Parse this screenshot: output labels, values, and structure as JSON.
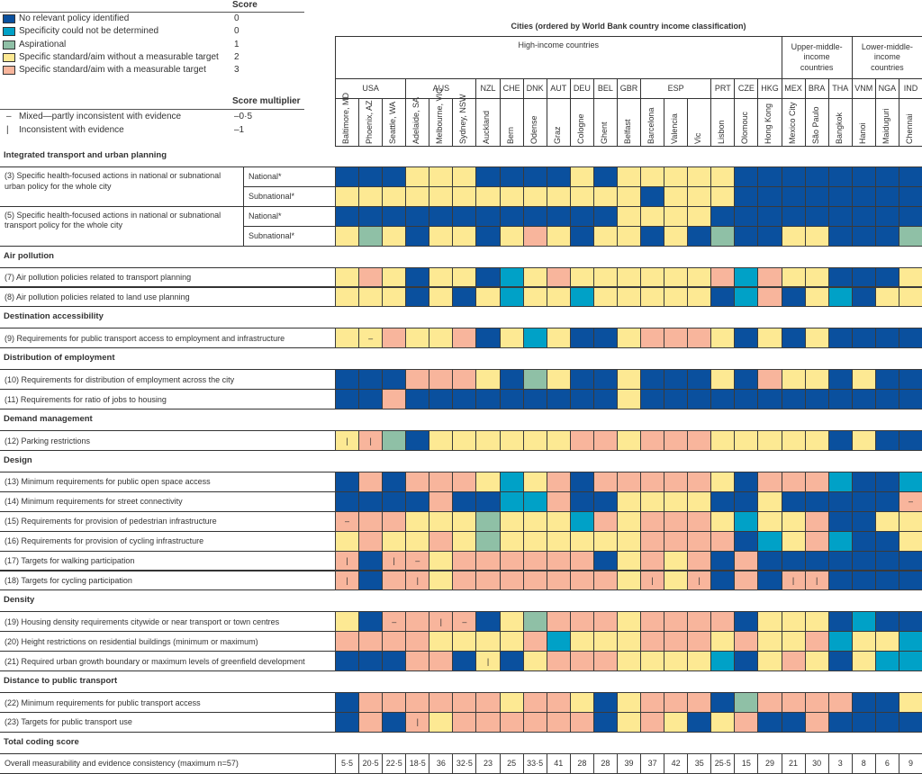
{
  "legend": {
    "score_header": "Score",
    "items": [
      {
        "code": "B",
        "label": "No relevant policy identified",
        "score": "0",
        "color": "#0a509e"
      },
      {
        "code": "C",
        "label": "Specificity could not be determined",
        "score": "0",
        "color": "#00a1c7"
      },
      {
        "code": "G",
        "label": "Aspirational",
        "score": "1",
        "color": "#8fc0a6"
      },
      {
        "code": "Y",
        "label": "Specific standard/aim without a measurable target",
        "score": "2",
        "color": "#fde993"
      },
      {
        "code": "P",
        "label": "Specific standard/aim with a measurable target",
        "score": "3",
        "color": "#f8b59c"
      }
    ],
    "multiplier_header": "Score multiplier",
    "multipliers": [
      {
        "symbol": "–",
        "label": "Mixed—partly inconsistent with evidence",
        "value": "–0·5"
      },
      {
        "symbol": "|",
        "label": "Inconsistent with evidence",
        "value": "–1"
      }
    ]
  },
  "header": {
    "title": "Cities (ordered by World Bank country income classification)",
    "income_groups": [
      {
        "label": "High-income countries",
        "span": 19
      },
      {
        "label": "Upper-middle-income countries",
        "span": 3
      },
      {
        "label": "Lower-middle-income countries",
        "span": 3
      }
    ],
    "countries": [
      {
        "label": "USA",
        "span": 3
      },
      {
        "label": "AUS",
        "span": 3
      },
      {
        "label": "NZL",
        "span": 1
      },
      {
        "label": "CHE",
        "span": 1
      },
      {
        "label": "DNK",
        "span": 1
      },
      {
        "label": "AUT",
        "span": 1
      },
      {
        "label": "DEU",
        "span": 1
      },
      {
        "label": "BEL",
        "span": 1
      },
      {
        "label": "GBR",
        "span": 1
      },
      {
        "label": "ESP",
        "span": 3
      },
      {
        "label": "PRT",
        "span": 1
      },
      {
        "label": "CZE",
        "span": 1
      },
      {
        "label": "HKG",
        "span": 1
      },
      {
        "label": "MEX",
        "span": 1
      },
      {
        "label": "BRA",
        "span": 1
      },
      {
        "label": "THA",
        "span": 1
      },
      {
        "label": "VNM",
        "span": 1
      },
      {
        "label": "NGA",
        "span": 1
      },
      {
        "label": "IND",
        "span": 1
      }
    ],
    "cities": [
      "Baltimore, MD",
      "Phoenix, AZ",
      "Seattle, WA",
      "Adelaide, SA",
      "Melbourne, VIC",
      "Sydney, NSW",
      "Auckland",
      "Bern",
      "Odense",
      "Graz",
      "Cologne",
      "Ghent",
      "Belfast",
      "Barcelona",
      "Valencia",
      "Vic",
      "Lisbon",
      "Olomouc",
      "Hong Kong",
      "Mexico City",
      "São Paulo",
      "Bangkok",
      "Hanoi",
      "Maiduguri",
      "Chennai"
    ]
  },
  "sections": [
    {
      "title": "Integrated transport and urban planning",
      "rows": [
        {
          "label": "(3) Specific health-focused actions in national or subnational urban policy for the whole city",
          "sub": [
            {
              "label": "National*",
              "cells": [
                "B",
                "B",
                "B",
                "Y",
                "Y",
                "Y",
                "B",
                "B",
                "B",
                "B",
                "Y",
                "B",
                "Y",
                "Y",
                "Y",
                "Y",
                "Y",
                "B",
                "B",
                "B",
                "B",
                "B",
                "B",
                "B",
                "B"
              ]
            },
            {
              "label": "Subnational*",
              "cells": [
                "Y",
                "Y",
                "Y",
                "Y",
                "Y",
                "Y",
                "Y",
                "Y",
                "Y",
                "Y",
                "Y",
                "Y",
                "Y",
                "B",
                "Y",
                "Y",
                "Y",
                "B",
                "B",
                "B",
                "B",
                "B",
                "B",
                "B",
                "B"
              ]
            }
          ]
        },
        {
          "label": "(5) Specific health-focused actions in national or subnational transport policy for the whole city",
          "sub": [
            {
              "label": "National*",
              "cells": [
                "B",
                "B",
                "B",
                "B",
                "B",
                "B",
                "B",
                "B",
                "B",
                "B",
                "B",
                "B",
                "Y",
                "Y",
                "Y",
                "Y",
                "B",
                "B",
                "B",
                "B",
                "B",
                "B",
                "B",
                "B",
                "B"
              ]
            },
            {
              "label": "Subnational*",
              "cells": [
                "Y",
                "G",
                "Y",
                "B",
                "Y",
                "Y",
                "B",
                "Y",
                "P",
                "Y",
                "B",
                "Y",
                "Y",
                "B",
                "Y",
                "B",
                "G",
                "B",
                "B",
                "Y",
                "Y",
                "B",
                "B",
                "B",
                "G"
              ]
            }
          ]
        }
      ]
    },
    {
      "title": "Air pollution",
      "rows": [
        {
          "label": "(7) Air pollution policies related to transport planning",
          "cells": [
            "Y",
            "P",
            "Y",
            "B",
            "Y",
            "Y",
            "B",
            "C",
            "Y",
            "P",
            "Y",
            "Y",
            "Y",
            "Y",
            "Y",
            "Y",
            "P",
            "C",
            "P",
            "Y",
            "Y",
            "B",
            "B",
            "B",
            "Y"
          ]
        },
        {
          "label": "(8) Air pollution policies related to land use planning",
          "cells": [
            "Y",
            "Y",
            "Y",
            "B",
            "Y",
            "B",
            "Y",
            "C",
            "Y",
            "Y",
            "C",
            "Y",
            "Y",
            "Y",
            "Y",
            "Y",
            "B",
            "C",
            "P",
            "B",
            "Y",
            "C",
            "B",
            "Y",
            "Y"
          ]
        }
      ]
    },
    {
      "title": "Destination accessibility",
      "rows": [
        {
          "label": "(9) Requirements for public transport access to employment and infrastructure",
          "cells": [
            "Y",
            "Y-",
            "P",
            "Y",
            "Y",
            "P",
            "B",
            "Y",
            "C",
            "Y",
            "B",
            "B",
            "Y",
            "P",
            "P",
            "P",
            "Y",
            "B",
            "Y",
            "B",
            "Y",
            "B",
            "B",
            "B",
            "B"
          ]
        }
      ]
    },
    {
      "title": "Distribution of employment",
      "rows": [
        {
          "label": "(10) Requirements for distribution of employment across the city",
          "cells": [
            "B",
            "B",
            "B",
            "P",
            "P",
            "P",
            "Y",
            "B",
            "G",
            "Y",
            "B",
            "B",
            "Y",
            "B",
            "B",
            "B",
            "Y",
            "B",
            "P",
            "Y",
            "Y",
            "B",
            "Y",
            "B",
            "B"
          ]
        },
        {
          "label": "(11) Requirements for ratio of jobs to housing",
          "cells": [
            "B",
            "B",
            "P",
            "B",
            "B",
            "B",
            "B",
            "B",
            "B",
            "B",
            "B",
            "B",
            "Y",
            "B",
            "B",
            "B",
            "B",
            "B",
            "B",
            "B",
            "B",
            "B",
            "B",
            "B",
            "B"
          ]
        }
      ]
    },
    {
      "title": "Demand management",
      "rows": [
        {
          "label": "(12) Parking restrictions",
          "cells": [
            "Y|",
            "P|",
            "G",
            "B",
            "Y",
            "Y",
            "Y",
            "Y",
            "Y",
            "Y",
            "P",
            "P",
            "Y",
            "P",
            "P",
            "P",
            "Y",
            "Y",
            "Y",
            "Y",
            "Y",
            "B",
            "Y",
            "B",
            "B"
          ]
        }
      ]
    },
    {
      "title": "Design",
      "rows": [
        {
          "label": "(13) Minimum requirements for public open space access",
          "cells": [
            "B",
            "P",
            "B",
            "P",
            "P",
            "P",
            "Y",
            "C",
            "Y",
            "P",
            "B",
            "P",
            "P",
            "P",
            "P",
            "P",
            "Y",
            "B",
            "P",
            "P",
            "P",
            "C",
            "B",
            "B",
            "C"
          ]
        },
        {
          "label": "(14) Minimum requirements for street connectivity",
          "cells": [
            "B",
            "B",
            "B",
            "B",
            "P",
            "B",
            "B",
            "C",
            "C",
            "P",
            "B",
            "B",
            "Y",
            "Y",
            "Y",
            "Y",
            "B",
            "B",
            "Y",
            "B",
            "B",
            "B",
            "B",
            "B",
            "P-"
          ]
        },
        {
          "label": "(15) Requirements for provision of pedestrian infrastructure",
          "cells": [
            "P-",
            "P",
            "P",
            "Y",
            "Y",
            "Y",
            "G",
            "Y",
            "Y",
            "Y",
            "C",
            "P",
            "Y",
            "P",
            "P",
            "P",
            "Y",
            "C",
            "Y",
            "Y",
            "P",
            "B",
            "B",
            "Y",
            "Y"
          ]
        },
        {
          "label": "(16) Requirements for provision of cycling infrastructure",
          "cells": [
            "Y",
            "P",
            "Y",
            "Y",
            "P",
            "Y",
            "G",
            "Y",
            "Y",
            "Y",
            "Y",
            "Y",
            "Y",
            "P",
            "P",
            "P",
            "P",
            "B",
            "C",
            "Y",
            "P",
            "C",
            "B",
            "B",
            "Y"
          ]
        },
        {
          "label": "(17) Targets for walking participation",
          "cells": [
            "P|",
            "B",
            "P|",
            "P-",
            "Y",
            "P",
            "P",
            "P",
            "P",
            "P",
            "P",
            "B",
            "Y",
            "P",
            "Y",
            "P",
            "B",
            "P",
            "B",
            "B",
            "B",
            "B",
            "B",
            "B",
            "B"
          ]
        },
        {
          "label": "(18) Targets for cycling participation",
          "cells": [
            "P|",
            "B",
            "P",
            "P|",
            "Y",
            "P",
            "P",
            "P",
            "P",
            "P",
            "P",
            "P",
            "Y",
            "P|",
            "Y",
            "P|",
            "B",
            "P",
            "B",
            "P|",
            "P|",
            "B",
            "B",
            "B",
            "B"
          ]
        }
      ]
    },
    {
      "title": "Density",
      "rows": [
        {
          "label": "(19) Housing density requirements citywide or near transport or town centres",
          "cells": [
            "Y",
            "B",
            "P-",
            "P",
            "P|",
            "P-",
            "B",
            "Y",
            "G",
            "P",
            "P",
            "P",
            "Y",
            "P",
            "P",
            "P",
            "P",
            "B",
            "Y",
            "Y",
            "Y",
            "B",
            "C",
            "B",
            "B"
          ]
        },
        {
          "label": "(20) Height restrictions on residential buildings (minimum or maximum)",
          "cells": [
            "P",
            "P",
            "P",
            "P",
            "Y",
            "Y",
            "Y",
            "Y",
            "P",
            "C",
            "Y",
            "Y",
            "Y",
            "P",
            "P",
            "P",
            "Y",
            "P",
            "Y",
            "Y",
            "P",
            "C",
            "Y",
            "Y",
            "C"
          ]
        },
        {
          "label": "(21) Required urban growth boundary or maximum levels of greenfield development",
          "cells": [
            "B",
            "B",
            "B",
            "P",
            "P",
            "B",
            "Y|",
            "B",
            "Y",
            "P",
            "P",
            "P",
            "Y",
            "Y",
            "Y",
            "Y",
            "C",
            "B",
            "Y",
            "P",
            "Y",
            "B",
            "Y",
            "C",
            "C"
          ]
        }
      ]
    },
    {
      "title": "Distance to public transport",
      "rows": [
        {
          "label": "(22) Minimum requirements for public transport access",
          "cells": [
            "B",
            "P",
            "P",
            "P",
            "P",
            "P",
            "P",
            "Y",
            "P",
            "P",
            "Y",
            "B",
            "Y",
            "P",
            "P",
            "P",
            "B",
            "G",
            "P",
            "P",
            "P",
            "P",
            "B",
            "B",
            "Y"
          ]
        },
        {
          "label": "(23) Targets for public transport use",
          "cells": [
            "B",
            "P",
            "B",
            "P|",
            "Y",
            "P",
            "P",
            "P",
            "P",
            "P",
            "P",
            "B",
            "Y",
            "P",
            "Y",
            "B",
            "Y",
            "P",
            "B",
            "B",
            "P",
            "B",
            "B",
            "B",
            "B"
          ]
        }
      ]
    },
    {
      "title": "Total coding score",
      "rows": [
        {
          "label": "Overall measurability and evidence consistency (maximum n=57)",
          "totals": [
            "5·5",
            "20·5",
            "22·5",
            "18·5",
            "36",
            "32·5",
            "23",
            "25",
            "33·5",
            "41",
            "28",
            "28",
            "39",
            "37",
            "42",
            "35",
            "25·5",
            "15",
            "29",
            "21",
            "30",
            "3",
            "8",
            "6",
            "9"
          ]
        }
      ]
    }
  ]
}
